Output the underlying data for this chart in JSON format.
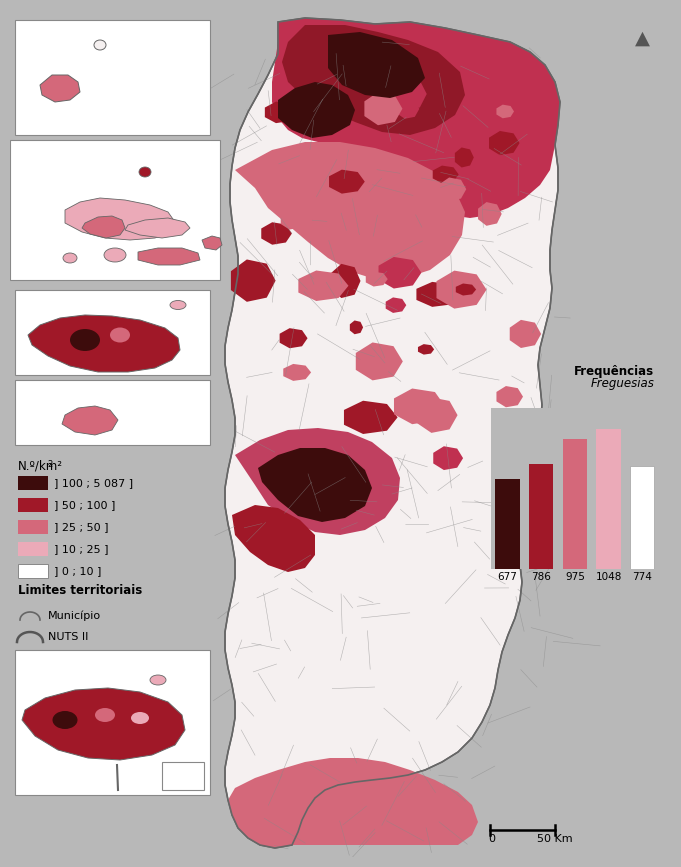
{
  "background_color": "#b8b8b8",
  "legend_colors": [
    "#3d0c0c",
    "#a01828",
    "#d4687a",
    "#ebaab8",
    "#ffffff"
  ],
  "legend_labels": [
    "] 100 ; 5 087 ]",
    "] 50 ; 100 ]",
    "] 25 ; 50 ]",
    "] 10 ; 25 ]",
    "] 0 ; 10 ]"
  ],
  "legend_title": "N.º/km²",
  "bar_values": [
    677,
    786,
    975,
    1048,
    774
  ],
  "bar_colors": [
    "#3d0c0c",
    "#a01828",
    "#d4687a",
    "#ebaab8",
    "#ffffff"
  ],
  "bar_labels": [
    "677",
    "786",
    "975",
    "1048",
    "774"
  ],
  "freq_title_bold": "Frequências",
  "freq_title_italic": "Freguesias",
  "limits_title": "Limites territoriais",
  "municipio_label": "Município",
  "nuts_label": "NUTS II",
  "scale_label": "50 Km",
  "scale_zero": "0",
  "inset_box_color": "#ffffff",
  "inset_edge_color": "#888888"
}
